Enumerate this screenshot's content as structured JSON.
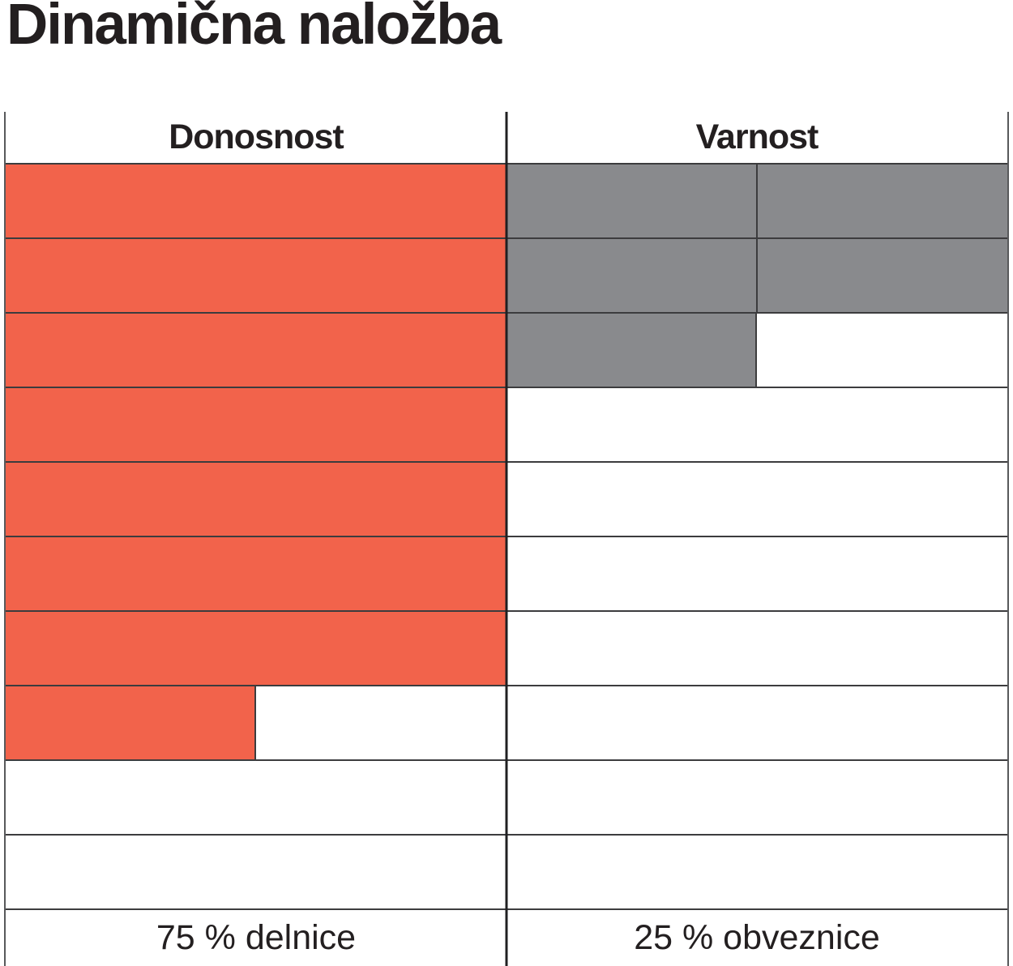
{
  "title": "Dinamična naložba",
  "table": {
    "rows_total": 10,
    "columns": [
      {
        "key": "donosnost",
        "header": "Donosnost",
        "footer": "75 % delnice",
        "fill_color": "#F2634B",
        "filled_units": 7.5,
        "show_unit_divider": false
      },
      {
        "key": "varnost",
        "header": "Varnost",
        "footer": "25 % obveznice",
        "fill_color": "#898A8D",
        "filled_units": 2.5,
        "show_unit_divider": true
      }
    ]
  },
  "colors": {
    "background": "#FFFFFF",
    "text": "#231F20",
    "grid_line": "#3C3C3E",
    "edge_line": "#58595B",
    "center_line": "#202022",
    "donosnost_fill": "#F2634B",
    "varnost_fill": "#898A8D"
  },
  "chart_data": {
    "type": "bar",
    "title": "Dinamična naložba",
    "categories": [
      "Donosnost",
      "Varnost"
    ],
    "series": [
      {
        "name": "filled cells (out of 10, each cell = 10 %)",
        "values": [
          7.5,
          2.5
        ]
      }
    ],
    "value_labels": [
      "75 % delnice",
      "25 % obveznice"
    ],
    "percentages": {
      "delnice": 75,
      "obveznice": 25
    },
    "ylim": [
      0,
      10
    ],
    "grid": true,
    "legend": false,
    "orientation": "two side-by-side columns of 10 stacked cells, filled from the top; Donosnost cells orange, Varnost cells grey"
  }
}
